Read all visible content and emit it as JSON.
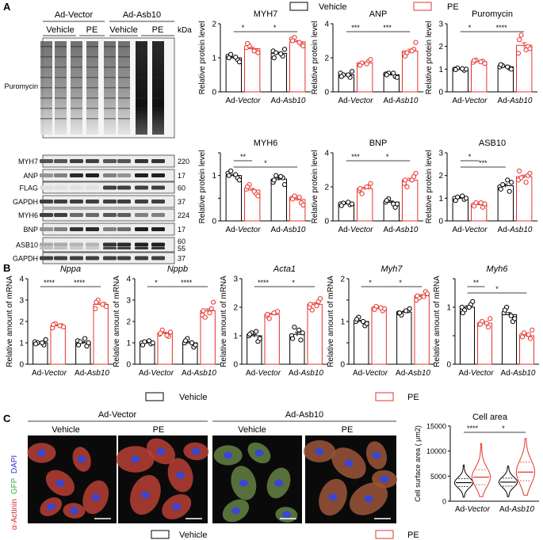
{
  "colors": {
    "vehicle": "#000000",
    "pe": "#e8322c",
    "micro_bg": "#0a0a0a",
    "micro_red": "#c83232",
    "micro_green": "#5a8a46",
    "micro_blue": "#3a46d2"
  },
  "panel_labels": {
    "a": "A",
    "b": "B",
    "c": "C"
  },
  "legend": {
    "vehicle": "Vehicle",
    "pe": "PE"
  },
  "blot": {
    "groups": [
      "Ad-Vector",
      "Ad-Asb10"
    ],
    "lanes": [
      "Vehicle",
      "PE",
      "Vehicle",
      "PE"
    ],
    "kda_header": "kDa",
    "bands": [
      {
        "label": "Puromycin",
        "kda": ""
      },
      {
        "label": "MYH7",
        "kda": "220"
      },
      {
        "label": "ANP",
        "kda": "17"
      },
      {
        "label": "FLAG",
        "kda": "60"
      },
      {
        "label": "GAPDH",
        "kda": "37"
      },
      {
        "label": "MYH6",
        "kda": "224"
      },
      {
        "label": "BNP",
        "kda": "17"
      },
      {
        "label": "ASB10",
        "kda": "60",
        "kda2": "55"
      },
      {
        "label": "GAPDH",
        "kda": "37"
      }
    ]
  },
  "micro": {
    "groups": [
      "Ad-Vector",
      "Ad-Asb10"
    ],
    "conditions": [
      "Vehicle",
      "PE",
      "Vehicle",
      "PE"
    ],
    "stain": {
      "alpha": "α-Actinin",
      "gfp": "GFP",
      "dapi": "DAPI"
    }
  },
  "chart_data": [
    {
      "id": "a-myh7",
      "type": "bar",
      "title": "MYH7",
      "ylabel": "Relative protein level",
      "ylim": [
        0,
        2
      ],
      "yticks": [
        0,
        1,
        2
      ],
      "categories": [
        "Ad-Vector",
        "Ad-Asb10"
      ],
      "series": [
        {
          "name": "Vehicle",
          "values": [
            1.0,
            1.13
          ]
        },
        {
          "name": "PE",
          "values": [
            1.27,
            1.47
          ]
        }
      ],
      "points": {
        "Vehicle": [
          [
            1.05,
            0.95,
            1.1,
            0.88,
            1.0,
            1.02
          ],
          [
            1.2,
            1.05,
            1.15,
            1.25,
            1.0,
            1.12
          ]
        ],
        "PE": [
          [
            1.3,
            1.2,
            1.35,
            1.15,
            1.42,
            1.2
          ],
          [
            1.55,
            1.4,
            1.6,
            1.35,
            1.5,
            1.45
          ]
        ]
      },
      "annotations": [
        {
          "label": "*",
          "from": "Ad-Vector Vehicle",
          "to": "Ad-Vector PE"
        },
        {
          "label": "*",
          "from": "Ad-Vector PE",
          "to": "Ad-Asb10 PE"
        }
      ]
    },
    {
      "id": "a-anp",
      "type": "bar",
      "title": "ANP",
      "ylabel": "Relative protein level",
      "ylim": [
        0,
        4
      ],
      "yticks": [
        0,
        2,
        4
      ],
      "categories": [
        "Ad-Vector",
        "Ad-Asb10"
      ],
      "series": [
        {
          "name": "Vehicle",
          "values": [
            1.0,
            1.0
          ]
        },
        {
          "name": "PE",
          "values": [
            1.7,
            2.4
          ]
        }
      ],
      "points": {
        "Vehicle": [
          [
            1.1,
            0.85,
            1.0,
            1.2,
            0.9,
            1.0
          ],
          [
            1.05,
            0.9,
            1.1,
            0.85,
            1.0,
            1.1
          ]
        ],
        "PE": [
          [
            1.6,
            1.8,
            1.7,
            1.9,
            1.55,
            1.65
          ],
          [
            2.2,
            2.5,
            2.3,
            2.9,
            2.1,
            2.4
          ]
        ]
      },
      "annotations": [
        {
          "label": "***",
          "from": "Ad-Vector Vehicle",
          "to": "Ad-Vector PE"
        },
        {
          "label": "***",
          "from": "Ad-Vector PE",
          "to": "Ad-Asb10 PE"
        }
      ]
    },
    {
      "id": "a-puro",
      "type": "bar",
      "title": "Puromycin",
      "ylabel": "Relative protein level",
      "ylim": [
        0,
        3
      ],
      "yticks": [
        0,
        1,
        2,
        3
      ],
      "categories": [
        "Ad-Vector",
        "Ad-Asb10"
      ],
      "series": [
        {
          "name": "Vehicle",
          "values": [
            1.0,
            1.1
          ]
        },
        {
          "name": "PE",
          "values": [
            1.33,
            2.05
          ]
        }
      ],
      "points": {
        "Vehicle": [
          [
            1.0,
            0.95,
            1.05,
            1.0,
            0.98,
            1.02
          ],
          [
            1.1,
            1.05,
            1.15,
            1.0,
            1.2,
            1.1
          ]
        ],
        "PE": [
          [
            1.3,
            1.35,
            1.4,
            1.25,
            1.38,
            1.32
          ],
          [
            1.7,
            2.0,
            2.5,
            1.9,
            2.3,
            1.85
          ]
        ]
      },
      "annotations": [
        {
          "label": "*",
          "from": "Ad-Vector Vehicle",
          "to": "Ad-Vector PE"
        },
        {
          "label": "****",
          "from": "Ad-Vector PE",
          "to": "Ad-Asb10 PE"
        }
      ]
    },
    {
      "id": "a-myh6",
      "type": "bar",
      "title": "MYH6",
      "ylabel": "Relative protein level",
      "ylim": [
        0,
        1.5
      ],
      "yticks": [
        0,
        0.5,
        1,
        1.5
      ],
      "ytick_labels": [
        "0",
        "",
        "1",
        ""
      ],
      "categories": [
        "Ad-Vector",
        "Ad-Asb10"
      ],
      "series": [
        {
          "name": "Vehicle",
          "values": [
            1.0,
            0.92
          ]
        },
        {
          "name": "PE",
          "values": [
            0.68,
            0.47
          ]
        }
      ],
      "points": {
        "Vehicle": [
          [
            1.05,
            0.95,
            1.1,
            0.9,
            1.0,
            1.02
          ],
          [
            0.85,
            0.95,
            1.0,
            0.8,
            0.9,
            0.98
          ]
        ],
        "PE": [
          [
            0.7,
            0.6,
            0.8,
            0.55,
            0.75,
            0.65
          ],
          [
            0.5,
            0.4,
            0.55,
            0.35,
            0.48,
            0.52
          ]
        ]
      },
      "annotations": [
        {
          "label": "**",
          "from": "Ad-Vector Vehicle",
          "to": "Ad-Vector PE"
        },
        {
          "label": "*",
          "from": "Ad-Vector Vehicle",
          "to": "Ad-Asb10 PE"
        }
      ]
    },
    {
      "id": "a-bnp",
      "type": "bar",
      "title": "BNP",
      "ylabel": "Relative protein level",
      "ylim": [
        0,
        4
      ],
      "yticks": [
        0,
        2,
        4
      ],
      "categories": [
        "Ad-Vector",
        "Ad-Asb10"
      ],
      "series": [
        {
          "name": "Vehicle",
          "values": [
            1.0,
            1.1
          ]
        },
        {
          "name": "PE",
          "values": [
            1.9,
            2.4
          ]
        }
      ],
      "points": {
        "Vehicle": [
          [
            1.0,
            0.95,
            1.05,
            1.0,
            0.9,
            1.1
          ],
          [
            1.1,
            0.8,
            1.3,
            1.0,
            1.2,
            1.0
          ]
        ],
        "PE": [
          [
            1.8,
            2.0,
            1.6,
            2.2,
            1.9,
            2.0
          ],
          [
            2.2,
            2.6,
            2.0,
            2.8,
            2.4,
            2.4
          ]
        ]
      },
      "annotations": [
        {
          "label": "***",
          "from": "Ad-Vector Vehicle",
          "to": "Ad-Vector PE"
        },
        {
          "label": "*",
          "from": "Ad-Vector PE",
          "to": "Ad-Asb10 PE"
        }
      ]
    },
    {
      "id": "a-asb10",
      "type": "bar",
      "title": "ASB10",
      "ylabel": "Relative protein level",
      "ylim": [
        0,
        3
      ],
      "yticks": [
        0,
        1,
        2,
        3
      ],
      "categories": [
        "Ad-Vector",
        "Ad-Asb10"
      ],
      "series": [
        {
          "name": "Vehicle",
          "values": [
            1.0,
            1.55
          ]
        },
        {
          "name": "PE",
          "values": [
            0.72,
            1.95
          ]
        }
      ],
      "points": {
        "Vehicle": [
          [
            1.0,
            0.95,
            1.05,
            1.0,
            0.9,
            1.1
          ],
          [
            1.5,
            1.3,
            1.6,
            1.7,
            1.4,
            1.8
          ]
        ],
        "PE": [
          [
            0.7,
            0.6,
            0.8,
            0.75,
            0.65,
            0.8
          ],
          [
            1.8,
            2.0,
            1.9,
            2.1,
            2.2,
            1.7
          ]
        ]
      },
      "annotations": [
        {
          "label": "*",
          "from": "Ad-Vector Vehicle",
          "to": "Ad-Vector PE"
        },
        {
          "label": "***",
          "from": "Ad-Vector Vehicle",
          "to": "Ad-Asb10 Vehicle"
        }
      ]
    },
    {
      "id": "b-nppa",
      "type": "bar",
      "title": "Nppa",
      "ylabel": "Relative amount of mRNA",
      "ylim": [
        0,
        4
      ],
      "yticks": [
        0,
        1,
        2,
        3,
        4
      ],
      "categories": [
        "Ad-Vector",
        "Ad-Asb10"
      ],
      "series": [
        {
          "name": "Vehicle",
          "values": [
            1.0,
            1.0
          ]
        },
        {
          "name": "PE",
          "values": [
            1.8,
            2.8
          ]
        }
      ],
      "points": {
        "Vehicle": [
          [
            1.05,
            0.9,
            1.0,
            1.15,
            0.95,
            1.0
          ],
          [
            1.1,
            0.85,
            1.05,
            1.0,
            0.9,
            1.2
          ]
        ],
        "PE": [
          [
            1.7,
            1.8,
            1.9,
            1.75,
            1.85,
            1.8
          ],
          [
            2.6,
            2.8,
            3.0,
            2.7,
            2.9,
            2.8
          ]
        ]
      },
      "annotations": [
        {
          "label": "****",
          "from": "Ad-Vector Vehicle",
          "to": "Ad-Vector PE"
        },
        {
          "label": "****",
          "from": "Ad-Vector PE",
          "to": "Ad-Asb10 PE"
        }
      ]
    },
    {
      "id": "b-nppb",
      "type": "bar",
      "title": "Nppb",
      "ylabel": "Relative amount of mRNA",
      "ylim": [
        0,
        4
      ],
      "yticks": [
        0,
        1,
        2,
        3,
        4
      ],
      "categories": [
        "Ad-Vector",
        "Ad-Asb10"
      ],
      "series": [
        {
          "name": "Vehicle",
          "values": [
            1.0,
            1.0
          ]
        },
        {
          "name": "PE",
          "values": [
            1.45,
            2.5
          ]
        }
      ],
      "points": {
        "Vehicle": [
          [
            1.0,
            0.95,
            1.05,
            1.0,
            0.9,
            1.1
          ],
          [
            1.0,
            0.8,
            1.2,
            0.9,
            1.1,
            1.0
          ]
        ],
        "PE": [
          [
            1.4,
            1.3,
            1.6,
            1.5,
            1.45,
            1.35
          ],
          [
            2.3,
            2.6,
            2.2,
            2.9,
            2.5,
            2.4
          ]
        ]
      },
      "annotations": [
        {
          "label": "*",
          "from": "Ad-Vector Vehicle",
          "to": "Ad-Vector PE"
        },
        {
          "label": "****",
          "from": "Ad-Vector PE",
          "to": "Ad-Asb10 PE"
        }
      ]
    },
    {
      "id": "b-acta1",
      "type": "bar",
      "title": "Acta1",
      "ylabel": "Relative amount of mRNA",
      "ylim": [
        0,
        3
      ],
      "yticks": [
        0,
        1,
        2,
        3
      ],
      "categories": [
        "Ad-Vector",
        "Ad-Asb10"
      ],
      "series": [
        {
          "name": "Vehicle",
          "values": [
            1.0,
            1.05
          ]
        },
        {
          "name": "PE",
          "values": [
            1.75,
            2.1
          ]
        }
      ],
      "points": {
        "Vehicle": [
          [
            1.0,
            0.8,
            1.1,
            0.9,
            1.05,
            1.15
          ],
          [
            1.0,
            0.85,
            1.3,
            1.1,
            0.9,
            1.2
          ]
        ],
        "PE": [
          [
            1.7,
            1.8,
            1.6,
            1.85,
            1.75,
            1.8
          ],
          [
            2.0,
            2.2,
            1.9,
            2.3,
            2.1,
            2.05
          ]
        ]
      },
      "annotations": [
        {
          "label": "****",
          "from": "Ad-Vector Vehicle",
          "to": "Ad-Vector PE"
        },
        {
          "label": "*",
          "from": "Ad-Vector PE",
          "to": "Ad-Asb10 PE"
        }
      ]
    },
    {
      "id": "b-myh7",
      "type": "bar",
      "title": "Myh7",
      "ylabel": "Relative amount of mRNA",
      "ylim": [
        0,
        2
      ],
      "yticks": [
        0,
        0.5,
        1,
        1.5,
        2
      ],
      "ytick_labels": [
        "0",
        "",
        "1",
        "",
        "2"
      ],
      "categories": [
        "Ad-Vector",
        "Ad-Asb10"
      ],
      "series": [
        {
          "name": "Vehicle",
          "values": [
            1.0,
            1.22
          ]
        },
        {
          "name": "PE",
          "values": [
            1.3,
            1.6
          ]
        }
      ],
      "points": {
        "Vehicle": [
          [
            1.0,
            0.9,
            1.1,
            0.95,
            1.05,
            1.0
          ],
          [
            1.2,
            1.25,
            1.15,
            1.3,
            1.2,
            1.25
          ]
        ],
        "PE": [
          [
            1.3,
            1.25,
            1.35,
            1.3,
            1.28,
            1.32
          ],
          [
            1.5,
            1.7,
            1.55,
            1.65,
            1.6,
            1.58
          ]
        ]
      },
      "annotations": [
        {
          "label": "*",
          "from": "Ad-Vector Vehicle",
          "to": "Ad-Vector PE"
        },
        {
          "label": "*",
          "from": "Ad-Vector PE",
          "to": "Ad-Asb10 PE"
        }
      ]
    },
    {
      "id": "b-myh6",
      "type": "bar",
      "title": "Myh6",
      "ylabel": "Relative amount of mRNA",
      "ylim": [
        0,
        1.5
      ],
      "yticks": [
        0,
        0.5,
        1,
        1.5
      ],
      "ytick_labels": [
        "0",
        "",
        "1",
        ""
      ],
      "categories": [
        "Ad-Vector",
        "Ad-Asb10"
      ],
      "series": [
        {
          "name": "Vehicle",
          "values": [
            1.0,
            0.87
          ]
        },
        {
          "name": "PE",
          "values": [
            0.72,
            0.5
          ]
        }
      ],
      "points": {
        "Vehicle": [
          [
            1.0,
            1.05,
            0.95,
            1.1,
            0.9,
            1.0
          ],
          [
            0.9,
            0.75,
            1.0,
            0.8,
            0.95,
            0.85
          ]
        ],
        "PE": [
          [
            0.7,
            0.65,
            0.75,
            0.8,
            0.7,
            0.72
          ],
          [
            0.5,
            0.45,
            0.55,
            0.6,
            0.48,
            0.52
          ]
        ]
      },
      "annotations": [
        {
          "label": "**",
          "from": "Ad-Vector Vehicle",
          "to": "Ad-Vector PE"
        },
        {
          "label": "*",
          "from": "Ad-Vector Vehicle",
          "to": "Ad-Asb10 PE"
        }
      ]
    },
    {
      "id": "c-area",
      "type": "violin",
      "title": "Cell area",
      "ylabel": "Cell surface area ( μm2)",
      "ylim": [
        0,
        15000
      ],
      "yticks": [
        0,
        5000,
        10000,
        15000
      ],
      "categories": [
        "Ad-Vector",
        "Ad-Asb10"
      ],
      "series": [
        {
          "name": "Vehicle",
          "median": [
            3700,
            3800
          ],
          "quartiles": [
            [
              2900,
              4500
            ],
            [
              3000,
              4600
            ]
          ],
          "range": [
            [
              800,
              7200
            ],
            [
              900,
              7000
            ]
          ]
        },
        {
          "name": "PE",
          "median": [
            4800,
            5800
          ],
          "quartiles": [
            [
              3300,
              6300
            ],
            [
              4100,
              7800
            ]
          ],
          "range": [
            [
              900,
              11500
            ],
            [
              1200,
              12500
            ]
          ]
        }
      ],
      "annotations": [
        {
          "label": "****",
          "from": "Ad-Vector Vehicle",
          "to": "Ad-Vector PE"
        },
        {
          "label": "*",
          "from": "Ad-Vector PE",
          "to": "Ad-Asb10 PE"
        }
      ]
    }
  ]
}
